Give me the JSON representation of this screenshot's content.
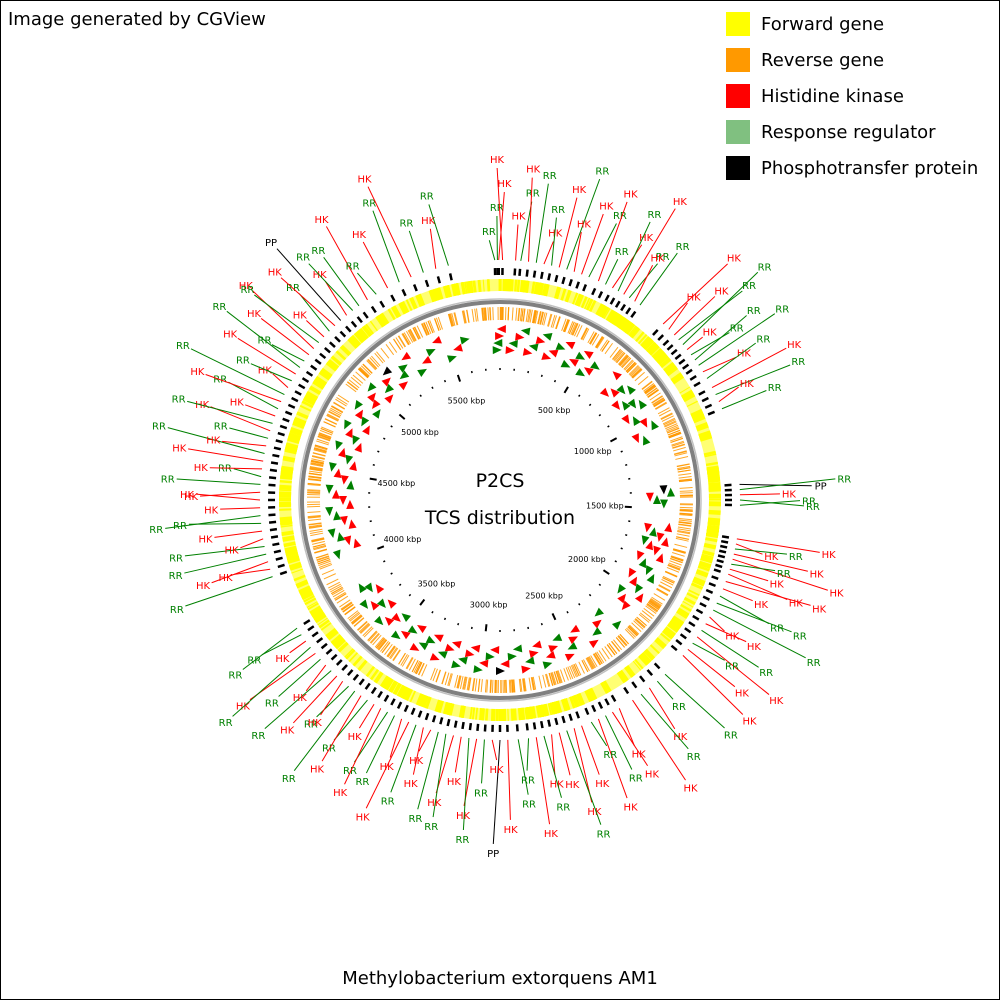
{
  "credit": "Image generated by CGView",
  "caption": "Methylobacterium extorquens AM1",
  "center": {
    "line1": "P2CS",
    "line2": "TCS distribution"
  },
  "legend": [
    {
      "label": "Forward gene",
      "color": "#ffff00"
    },
    {
      "label": "Reverse gene",
      "color": "#ff9900"
    },
    {
      "label": "Histidine kinase",
      "color": "#ff0000"
    },
    {
      "label": "Response regulator",
      "color": "#80c080"
    },
    {
      "label": "Phosphotransfer protein",
      "color": "#000000"
    }
  ],
  "genome_length_kbp": 5800,
  "ticks": [
    "500 kbp",
    "1000 kbp",
    "1500 kbp",
    "2000 kbp",
    "2500 kbp",
    "3000 kbp",
    "3500 kbp",
    "4000 kbp",
    "4500 kbp",
    "5000 kbp",
    "5500 kbp"
  ],
  "tick_values_kbp": [
    500,
    1000,
    1500,
    2000,
    2500,
    3000,
    3500,
    4000,
    4500,
    5000,
    5500
  ],
  "feature_labels": {
    "hk": "HK",
    "rr": "RR",
    "pp": "PP",
    "hk_color": "#ff0000",
    "rr_color": "#008000",
    "pp_color": "#000000"
  },
  "features": [
    {
      "kbp": 5780,
      "type": "rr"
    },
    {
      "kbp": 5790,
      "type": "rr"
    },
    {
      "kbp": 5795,
      "type": "hk"
    },
    {
      "kbp": 10,
      "type": "hk"
    },
    {
      "kbp": 60,
      "type": "hk"
    },
    {
      "kbp": 80,
      "type": "rr"
    },
    {
      "kbp": 110,
      "type": "hk"
    },
    {
      "kbp": 140,
      "type": "rr"
    },
    {
      "kbp": 170,
      "type": "hk"
    },
    {
      "kbp": 200,
      "type": "rr"
    },
    {
      "kbp": 230,
      "type": "hk"
    },
    {
      "kbp": 260,
      "type": "rr"
    },
    {
      "kbp": 290,
      "type": "hk"
    },
    {
      "kbp": 320,
      "type": "hk"
    },
    {
      "kbp": 350,
      "type": "rr"
    },
    {
      "kbp": 390,
      "type": "hk"
    },
    {
      "kbp": 420,
      "type": "rr"
    },
    {
      "kbp": 450,
      "type": "hk"
    },
    {
      "kbp": 475,
      "type": "rr"
    },
    {
      "kbp": 500,
      "type": "hk"
    },
    {
      "kbp": 525,
      "type": "rr"
    },
    {
      "kbp": 550,
      "type": "hk"
    },
    {
      "kbp": 575,
      "type": "rr"
    },
    {
      "kbp": 690,
      "type": "hk"
    },
    {
      "kbp": 720,
      "type": "hk"
    },
    {
      "kbp": 750,
      "type": "hk"
    },
    {
      "kbp": 775,
      "type": "rr"
    },
    {
      "kbp": 800,
      "type": "rr"
    },
    {
      "kbp": 825,
      "type": "hk"
    },
    {
      "kbp": 850,
      "type": "rr"
    },
    {
      "kbp": 875,
      "type": "rr"
    },
    {
      "kbp": 900,
      "type": "rr"
    },
    {
      "kbp": 930,
      "type": "hk"
    },
    {
      "kbp": 960,
      "type": "rr"
    },
    {
      "kbp": 1000,
      "type": "hk"
    },
    {
      "kbp": 1030,
      "type": "rr"
    },
    {
      "kbp": 1060,
      "type": "hk"
    },
    {
      "kbp": 1090,
      "type": "rr"
    },
    {
      "kbp": 1390,
      "type": "pp"
    },
    {
      "kbp": 1410,
      "type": "rr"
    },
    {
      "kbp": 1430,
      "type": "hk"
    },
    {
      "kbp": 1450,
      "type": "rr"
    },
    {
      "kbp": 1470,
      "type": "rr"
    },
    {
      "kbp": 1600,
      "type": "hk"
    },
    {
      "kbp": 1620,
      "type": "hk"
    },
    {
      "kbp": 1640,
      "type": "rr"
    },
    {
      "kbp": 1660,
      "type": "hk"
    },
    {
      "kbp": 1680,
      "type": "hk"
    },
    {
      "kbp": 1700,
      "type": "rr"
    },
    {
      "kbp": 1720,
      "type": "hk"
    },
    {
      "kbp": 1740,
      "type": "hk"
    },
    {
      "kbp": 1770,
      "type": "hk"
    },
    {
      "kbp": 1800,
      "type": "hk"
    },
    {
      "kbp": 1830,
      "type": "rr"
    },
    {
      "kbp": 1860,
      "type": "rr"
    },
    {
      "kbp": 1890,
      "type": "rr"
    },
    {
      "kbp": 1920,
      "type": "hk"
    },
    {
      "kbp": 1950,
      "type": "hk"
    },
    {
      "kbp": 1980,
      "type": "rr"
    },
    {
      "kbp": 2010,
      "type": "hk"
    },
    {
      "kbp": 2040,
      "type": "rr"
    },
    {
      "kbp": 2070,
      "type": "hk"
    },
    {
      "kbp": 2100,
      "type": "hk"
    },
    {
      "kbp": 2200,
      "type": "rr"
    },
    {
      "kbp": 2240,
      "type": "rr"
    },
    {
      "kbp": 2280,
      "type": "hk"
    },
    {
      "kbp": 2320,
      "type": "rr"
    },
    {
      "kbp": 2360,
      "type": "hk"
    },
    {
      "kbp": 2420,
      "type": "hk"
    },
    {
      "kbp": 2450,
      "type": "hk"
    },
    {
      "kbp": 2480,
      "type": "rr"
    },
    {
      "kbp": 2510,
      "type": "hk"
    },
    {
      "kbp": 2540,
      "type": "rr"
    },
    {
      "kbp": 2580,
      "type": "hk"
    },
    {
      "kbp": 2610,
      "type": "hk"
    },
    {
      "kbp": 2640,
      "type": "rr"
    },
    {
      "kbp": 2670,
      "type": "hk"
    },
    {
      "kbp": 2700,
      "type": "hk"
    },
    {
      "kbp": 2730,
      "type": "rr"
    },
    {
      "kbp": 2760,
      "type": "hk"
    },
    {
      "kbp": 2790,
      "type": "rr"
    },
    {
      "kbp": 2830,
      "type": "rr"
    },
    {
      "kbp": 2870,
      "type": "hk"
    },
    {
      "kbp": 2900,
      "type": "pp"
    },
    {
      "kbp": 2930,
      "type": "hk"
    },
    {
      "kbp": 2960,
      "type": "rr"
    },
    {
      "kbp": 2990,
      "type": "hk"
    },
    {
      "kbp": 3020,
      "type": "rr"
    },
    {
      "kbp": 3050,
      "type": "hk"
    },
    {
      "kbp": 3080,
      "type": "hk"
    },
    {
      "kbp": 3110,
      "type": "rr"
    },
    {
      "kbp": 3140,
      "type": "rr"
    },
    {
      "kbp": 3170,
      "type": "hk"
    },
    {
      "kbp": 3200,
      "type": "hk"
    },
    {
      "kbp": 3230,
      "type": "rr"
    },
    {
      "kbp": 3260,
      "type": "hk"
    },
    {
      "kbp": 3290,
      "type": "hk"
    },
    {
      "kbp": 3320,
      "type": "rr"
    },
    {
      "kbp": 3350,
      "type": "rr"
    },
    {
      "kbp": 3380,
      "type": "hk"
    },
    {
      "kbp": 3410,
      "type": "hk"
    },
    {
      "kbp": 3440,
      "type": "rr"
    },
    {
      "kbp": 3470,
      "type": "hk"
    },
    {
      "kbp": 3500,
      "type": "rr"
    },
    {
      "kbp": 3530,
      "type": "rr"
    },
    {
      "kbp": 3560,
      "type": "hk"
    },
    {
      "kbp": 3590,
      "type": "hk"
    },
    {
      "kbp": 3620,
      "type": "rr"
    },
    {
      "kbp": 3650,
      "type": "hk"
    },
    {
      "kbp": 3680,
      "type": "rr"
    },
    {
      "kbp": 3710,
      "type": "hk"
    },
    {
      "kbp": 3740,
      "type": "rr"
    },
    {
      "kbp": 3770,
      "type": "hk"
    },
    {
      "kbp": 3800,
      "type": "rr"
    },
    {
      "kbp": 3830,
      "type": "rr"
    },
    {
      "kbp": 4050,
      "type": "rr"
    },
    {
      "kbp": 4080,
      "type": "hk"
    },
    {
      "kbp": 4110,
      "type": "hk"
    },
    {
      "kbp": 4140,
      "type": "rr"
    },
    {
      "kbp": 4170,
      "type": "rr"
    },
    {
      "kbp": 4200,
      "type": "hk"
    },
    {
      "kbp": 4230,
      "type": "hk"
    },
    {
      "kbp": 4260,
      "type": "rr"
    },
    {
      "kbp": 4290,
      "type": "rr"
    },
    {
      "kbp": 4320,
      "type": "hk"
    },
    {
      "kbp": 4350,
      "type": "hk"
    },
    {
      "kbp": 4380,
      "type": "hk"
    },
    {
      "kbp": 4410,
      "type": "rr"
    },
    {
      "kbp": 4440,
      "type": "rr"
    },
    {
      "kbp": 4470,
      "type": "hk"
    },
    {
      "kbp": 4500,
      "type": "hk"
    },
    {
      "kbp": 4530,
      "type": "rr"
    },
    {
      "kbp": 4560,
      "type": "hk"
    },
    {
      "kbp": 4590,
      "type": "rr"
    },
    {
      "kbp": 4620,
      "type": "hk"
    },
    {
      "kbp": 4650,
      "type": "rr"
    },
    {
      "kbp": 4680,
      "type": "hk"
    },
    {
      "kbp": 4710,
      "type": "rr"
    },
    {
      "kbp": 4740,
      "type": "hk"
    },
    {
      "kbp": 4770,
      "type": "rr"
    },
    {
      "kbp": 4800,
      "type": "hk"
    },
    {
      "kbp": 4830,
      "type": "rr"
    },
    {
      "kbp": 4860,
      "type": "hk"
    },
    {
      "kbp": 4890,
      "type": "rr"
    },
    {
      "kbp": 4920,
      "type": "rr"
    },
    {
      "kbp": 4950,
      "type": "hk"
    },
    {
      "kbp": 4980,
      "type": "hk"
    },
    {
      "kbp": 5010,
      "type": "rr"
    },
    {
      "kbp": 5040,
      "type": "hk"
    },
    {
      "kbp": 5070,
      "type": "rr"
    },
    {
      "kbp": 5100,
      "type": "hk"
    },
    {
      "kbp": 5130,
      "type": "pp"
    },
    {
      "kbp": 5160,
      "type": "hk"
    },
    {
      "kbp": 5190,
      "type": "rr"
    },
    {
      "kbp": 5220,
      "type": "rr"
    },
    {
      "kbp": 5260,
      "type": "hk"
    },
    {
      "kbp": 5300,
      "type": "rr"
    },
    {
      "kbp": 5350,
      "type": "hk"
    },
    {
      "kbp": 5400,
      "type": "rr"
    },
    {
      "kbp": 5450,
      "type": "hk"
    },
    {
      "kbp": 5500,
      "type": "rr"
    },
    {
      "kbp": 5550,
      "type": "hk"
    },
    {
      "kbp": 5600,
      "type": "rr"
    }
  ]
}
